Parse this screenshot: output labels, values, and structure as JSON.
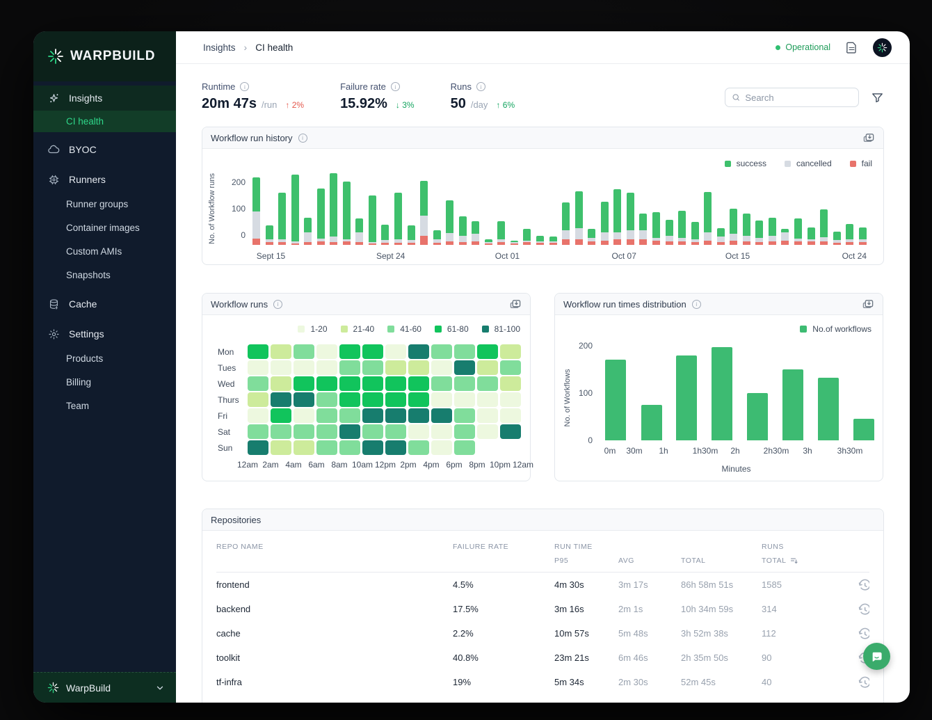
{
  "brand": {
    "logo_text": "WARPBUILD",
    "footer_text": "WarpBuild"
  },
  "sidebar": {
    "items": {
      "insights": "Insights",
      "ci_health": "CI health",
      "byoc": "BYOC",
      "runners": "Runners",
      "runner_groups": "Runner groups",
      "container_images": "Container images",
      "custom_amis": "Custom AMIs",
      "snapshots": "Snapshots",
      "cache": "Cache",
      "settings": "Settings",
      "products": "Products",
      "billing": "Billing",
      "team": "Team"
    }
  },
  "topbar": {
    "breadcrumb": [
      "Insights",
      "CI health"
    ],
    "separator": "›",
    "status": "Operational"
  },
  "stats": [
    {
      "label": "Runtime",
      "value": "20m 47s",
      "suffix": "/run",
      "arrow": "↑",
      "delta": "2%",
      "tone": "bad"
    },
    {
      "label": "Failure rate",
      "value": "15.92%",
      "suffix": "",
      "arrow": "↓",
      "delta": "3%",
      "tone": "good"
    },
    {
      "label": "Runs",
      "value": "50",
      "suffix": "/day",
      "arrow": "↑",
      "delta": "6%",
      "tone": "good"
    }
  ],
  "search": {
    "placeholder": "Search"
  },
  "colors": {
    "success": "#3ec06c",
    "cancelled": "#d6dbe2",
    "fail": "#e8736b",
    "distribution_bar": "#3dbb72",
    "accent_green": "#2fd78a",
    "status_green": "#1d9b58",
    "heat_levels": [
      "#edf8df",
      "#cdeb9b",
      "#80dd9b",
      "#11c45c",
      "#177d6e"
    ]
  },
  "chart_data": [
    {
      "id": "workflow_run_history",
      "type": "bar",
      "title": "Workflow run history",
      "ylabel": "No. of Workflow runs",
      "yticks": [
        0,
        100,
        200
      ],
      "legend": [
        "success",
        "cancelled",
        "fail"
      ],
      "legend_position": "top-right",
      "grid": false,
      "x_axis_labels": [
        {
          "label": "Sept 15",
          "pct": 3
        },
        {
          "label": "Sept 24",
          "pct": 22.5
        },
        {
          "label": "Oct 01",
          "pct": 41.5
        },
        {
          "label": "Oct 07",
          "pct": 60.5
        },
        {
          "label": "Oct 15",
          "pct": 79
        },
        {
          "label": "Oct 24",
          "pct": 98
        }
      ],
      "series": [
        {
          "name": "success",
          "values": [
            118,
            48,
            158,
            228,
            50,
            172,
            218,
            196,
            48,
            158,
            52,
            160,
            50,
            118,
            32,
            112,
            65,
            45,
            8,
            60,
            5,
            40,
            18,
            15,
            95,
            125,
            32,
            105,
            148,
            128,
            58,
            88,
            55,
            92,
            58,
            138,
            30,
            88,
            78,
            58,
            62,
            12,
            68,
            40,
            95,
            30,
            52,
            42
          ]
        },
        {
          "name": "cancelled",
          "values": [
            92,
            8,
            10,
            8,
            32,
            10,
            18,
            8,
            32,
            5,
            8,
            10,
            8,
            68,
            10,
            28,
            22,
            25,
            5,
            10,
            5,
            5,
            5,
            5,
            32,
            38,
            12,
            28,
            25,
            32,
            30,
            10,
            18,
            12,
            10,
            28,
            18,
            22,
            18,
            15,
            18,
            28,
            10,
            8,
            15,
            8,
            10,
            8
          ]
        },
        {
          "name": "fail",
          "values": [
            22,
            10,
            10,
            5,
            10,
            12,
            10,
            12,
            10,
            5,
            8,
            8,
            8,
            32,
            8,
            12,
            10,
            12,
            5,
            10,
            5,
            10,
            8,
            8,
            18,
            20,
            12,
            15,
            18,
            18,
            20,
            15,
            12,
            12,
            10,
            15,
            10,
            15,
            12,
            10,
            12,
            15,
            12,
            12,
            12,
            8,
            10,
            10
          ]
        }
      ]
    },
    {
      "id": "workflow_runs_heatmap",
      "type": "heatmap",
      "title": "Workflow runs",
      "legend_bins": [
        "1-20",
        "21-40",
        "41-60",
        "61-80",
        "81-100"
      ],
      "hours": [
        "12am",
        "2am",
        "4am",
        "6am",
        "8am",
        "10am",
        "12pm",
        "2pm",
        "4pm",
        "6pm",
        "8pm",
        "10pm",
        "12am"
      ],
      "rows": [
        {
          "day": "Mon",
          "levels": [
            4,
            2,
            3,
            1,
            4,
            4,
            1,
            5,
            3,
            3,
            4,
            2
          ]
        },
        {
          "day": "Tues",
          "levels": [
            1,
            1,
            1,
            1,
            3,
            3,
            2,
            2,
            1,
            5,
            2,
            3
          ]
        },
        {
          "day": "Wed",
          "levels": [
            3,
            2,
            4,
            4,
            4,
            4,
            4,
            4,
            3,
            3,
            3,
            2
          ]
        },
        {
          "day": "Thurs",
          "levels": [
            2,
            5,
            5,
            3,
            4,
            4,
            4,
            4,
            1,
            1,
            1,
            1
          ]
        },
        {
          "day": "Fri",
          "levels": [
            1,
            4,
            1,
            3,
            3,
            5,
            5,
            5,
            5,
            3,
            1,
            1
          ]
        },
        {
          "day": "Sat",
          "levels": [
            3,
            3,
            3,
            3,
            5,
            3,
            3,
            1,
            1,
            3,
            1,
            5
          ]
        },
        {
          "day": "Sun",
          "levels": [
            5,
            2,
            2,
            3,
            3,
            5,
            5,
            3,
            1,
            3,
            0,
            0
          ]
        }
      ]
    },
    {
      "id": "workflow_run_times_distribution",
      "type": "bar",
      "title": "Workflow run times distribution",
      "legend": "No.of workflows",
      "ylabel": "No. of Workflows",
      "xlabel": "Minutes",
      "yticks": [
        0,
        100,
        200
      ],
      "x_tick_labels": [
        "0m",
        "30m",
        "1h",
        "1h30m",
        "2h",
        "2h30m",
        "3h",
        "3h30m"
      ],
      "values": [
        170,
        75,
        180,
        197,
        100,
        150,
        132,
        45
      ]
    }
  ],
  "repositories": {
    "title": "Repositories",
    "group_headers": {
      "repo": "REPO NAME",
      "failure": "FAILURE RATE",
      "run_time": "RUN TIME",
      "runs": "RUNS"
    },
    "sub_headers": {
      "p95": "P95",
      "avg": "AVG",
      "total": "TOTAL",
      "runs_total": "TOTAL"
    },
    "rows": [
      {
        "repo": "frontend",
        "failure_rate": "4.5%",
        "p95": "4m 30s",
        "avg": "3m 17s",
        "total": "86h 58m 51s",
        "runs": "1585"
      },
      {
        "repo": "backend",
        "failure_rate": "17.5%",
        "p95": "3m 16s",
        "avg": "2m 1s",
        "total": "10h 34m 59s",
        "runs": "314"
      },
      {
        "repo": "cache",
        "failure_rate": "2.2%",
        "p95": "10m 57s",
        "avg": "5m 48s",
        "total": "3h 52m 38s",
        "runs": "112"
      },
      {
        "repo": "toolkit",
        "failure_rate": "40.8%",
        "p95": "23m 21s",
        "avg": "6m 46s",
        "total": "2h 35m 50s",
        "runs": "90"
      },
      {
        "repo": "tf-infra",
        "failure_rate": "19%",
        "p95": "5m 34s",
        "avg": "2m 30s",
        "total": "52m 45s",
        "runs": "40"
      }
    ]
  }
}
